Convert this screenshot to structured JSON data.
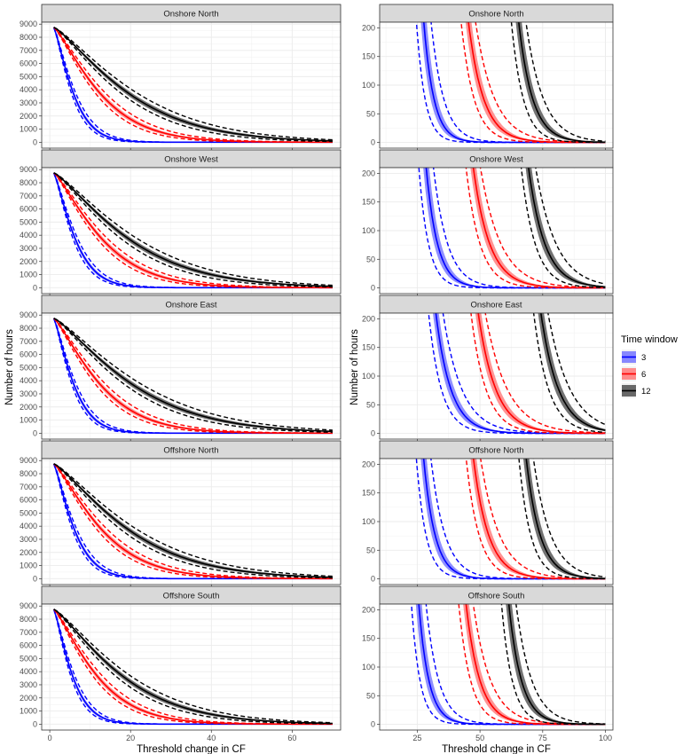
{
  "chart_data": {
    "type": "line",
    "facets": [
      "Onshore North",
      "Onshore West",
      "Onshore East",
      "Offshore North",
      "Offshore South"
    ],
    "x_label": "Threshold change in CF",
    "y_label": "Number of hours",
    "legend": {
      "title": "Time window",
      "placement": "right",
      "entries": [
        {
          "label": "3",
          "color": "#0000ff",
          "fill": "#7b7bff"
        },
        {
          "label": "6",
          "color": "#ff0000",
          "fill": "#ff8080"
        },
        {
          "label": "12",
          "color": "#000000",
          "fill": "#595959"
        }
      ]
    },
    "left_column": {
      "xlim": [
        -2,
        72
      ],
      "ylim": [
        -450,
        9150
      ],
      "x_ticks": [
        0,
        20,
        40,
        60
      ],
      "y_ticks": [
        0,
        1000,
        2000,
        3000,
        4000,
        5000,
        6000,
        7000,
        8000,
        9000
      ],
      "start_value": 8760,
      "x_range": [
        1,
        70
      ],
      "series": [
        {
          "window": "3",
          "decay": [
            5.5,
            6.0,
            5.6,
            5.8,
            5.2
          ]
        },
        {
          "window": "6",
          "decay": [
            13.0,
            13.5,
            13.0,
            13.5,
            12.0
          ]
        },
        {
          "window": "12",
          "decay": [
            21.0,
            21.0,
            22.0,
            21.0,
            19.0
          ]
        }
      ]
    },
    "right_column": {
      "xlim": [
        10,
        103
      ],
      "ylim": [
        -10,
        210
      ],
      "x_ticks": [
        25,
        50,
        75,
        100
      ],
      "y_ticks": [
        0,
        50,
        100,
        150,
        200
      ],
      "x_range_end": 100,
      "series": [
        {
          "window": "3",
          "start_x": [
            28,
            29,
            33,
            28,
            26
          ],
          "decay": [
            4.0,
            4.5,
            6.0,
            4.5,
            4.0
          ]
        },
        {
          "window": "6",
          "start_x": [
            46,
            48,
            50,
            48,
            45
          ],
          "decay": [
            6.0,
            6.5,
            7.0,
            6.0,
            5.5
          ]
        },
        {
          "window": "12",
          "start_x": [
            66,
            70,
            75,
            69,
            62
          ],
          "decay": [
            5.5,
            6.5,
            7.0,
            5.5,
            5.0
          ]
        }
      ]
    }
  }
}
